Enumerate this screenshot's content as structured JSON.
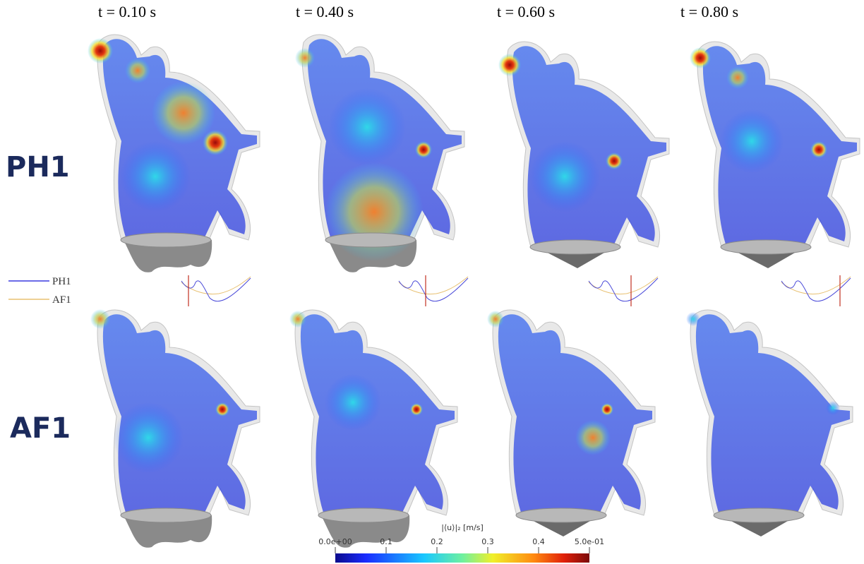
{
  "columns": [
    "t = 0.10 s",
    "t = 0.40 s",
    "t = 0.60 s",
    "t = 0.80 s"
  ],
  "rows": [
    "PH1",
    "AF1"
  ],
  "legend": [
    "PH1",
    "AF1"
  ],
  "colorbar": {
    "title": "|⟨u⟩|₂ [m/s]",
    "lim": [
      0,
      0.5
    ],
    "ticks": [
      {
        "value": 0,
        "label": "0.0e+00"
      },
      0.1,
      0.2,
      0.3,
      0.4,
      {
        "value": 0.5,
        "label": "5.0e-01"
      }
    ]
  }
}
